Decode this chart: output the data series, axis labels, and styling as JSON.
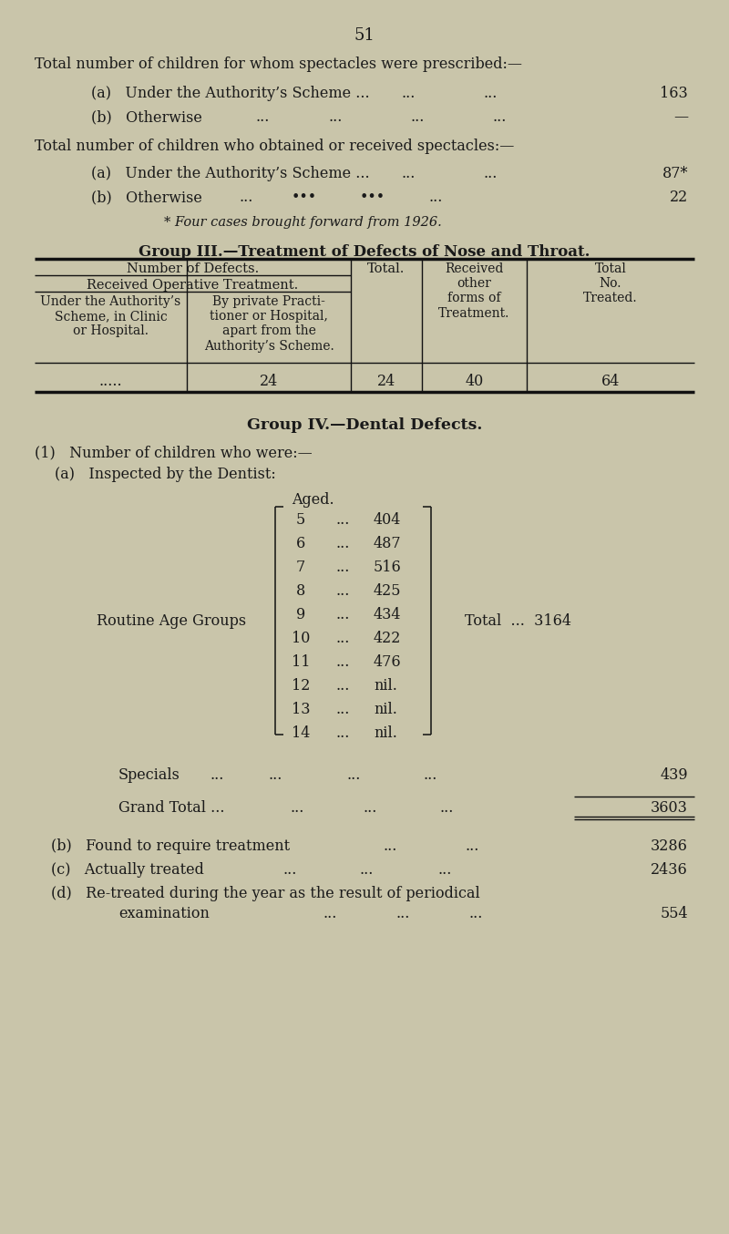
{
  "bg_color": "#c9c5aa",
  "text_color": "#1a1a1a",
  "page_number": "51",
  "section1_title": "Total number of children for whom spectacles were prescribed:—",
  "section1_a_label": "(a)   Under the Authority’s Scheme ...",
  "section1_a_value": "163",
  "section1_b_label": "(b)   Otherwise",
  "section1_b_value": "—",
  "section2_title": "Total number of children who obtained or received spectacles:—",
  "section2_a_label": "(a)   Under the Authority’s Scheme ...",
  "section2_a_value": "87*",
  "section2_b_label": "(b)   Otherwise",
  "section2_b_value": "22",
  "footnote": "* Four cases brought forward from 1926.",
  "group3_title": "Group III.—Treatment of Defects of Nose and Throat.",
  "table_col1_header": "Number of Defects.",
  "table_recv_op": "Received Operative Treatment.",
  "table_subcol1": "Under the Authority’s\nScheme, in Clinic\nor Hospital.",
  "table_subcol2": "By private Practi-\ntioner or Hospital,\napart from the\nAuthority’s Scheme.",
  "table_subcol3": "Total.",
  "table_recv_other": "Received\nother\nforms of\nTreatment.",
  "table_total": "Total\nNo.\nTreated.",
  "table_d1": ".....",
  "table_d2": "24",
  "table_d3": "24",
  "table_d4": "40",
  "table_d5": "64",
  "group4_title": "Group IV.—Dental Defects.",
  "dental_1": "(1)   Number of children who were:—",
  "dental_a": "(a)   Inspected by the Dentist:",
  "aged_label": "Aged.",
  "routine_label": "Routine Age Groups",
  "ages": [
    5,
    6,
    7,
    8,
    9,
    10,
    11,
    12,
    13,
    14
  ],
  "age_values": [
    "404",
    "487",
    "516",
    "425",
    "434",
    "422",
    "476",
    "nil.",
    "nil.",
    "nil."
  ],
  "total_routine": "3164",
  "specials_value": "439",
  "grand_total_value": "3603",
  "b_label": "(b)   Found to require treatment",
  "b_value": "3286",
  "c_label": "(c)   Actually treated",
  "c_value": "2436",
  "d_label1": "(d)   Re-treated during the year as the result of periodical",
  "d_label2": "            examination",
  "d_value": "554"
}
